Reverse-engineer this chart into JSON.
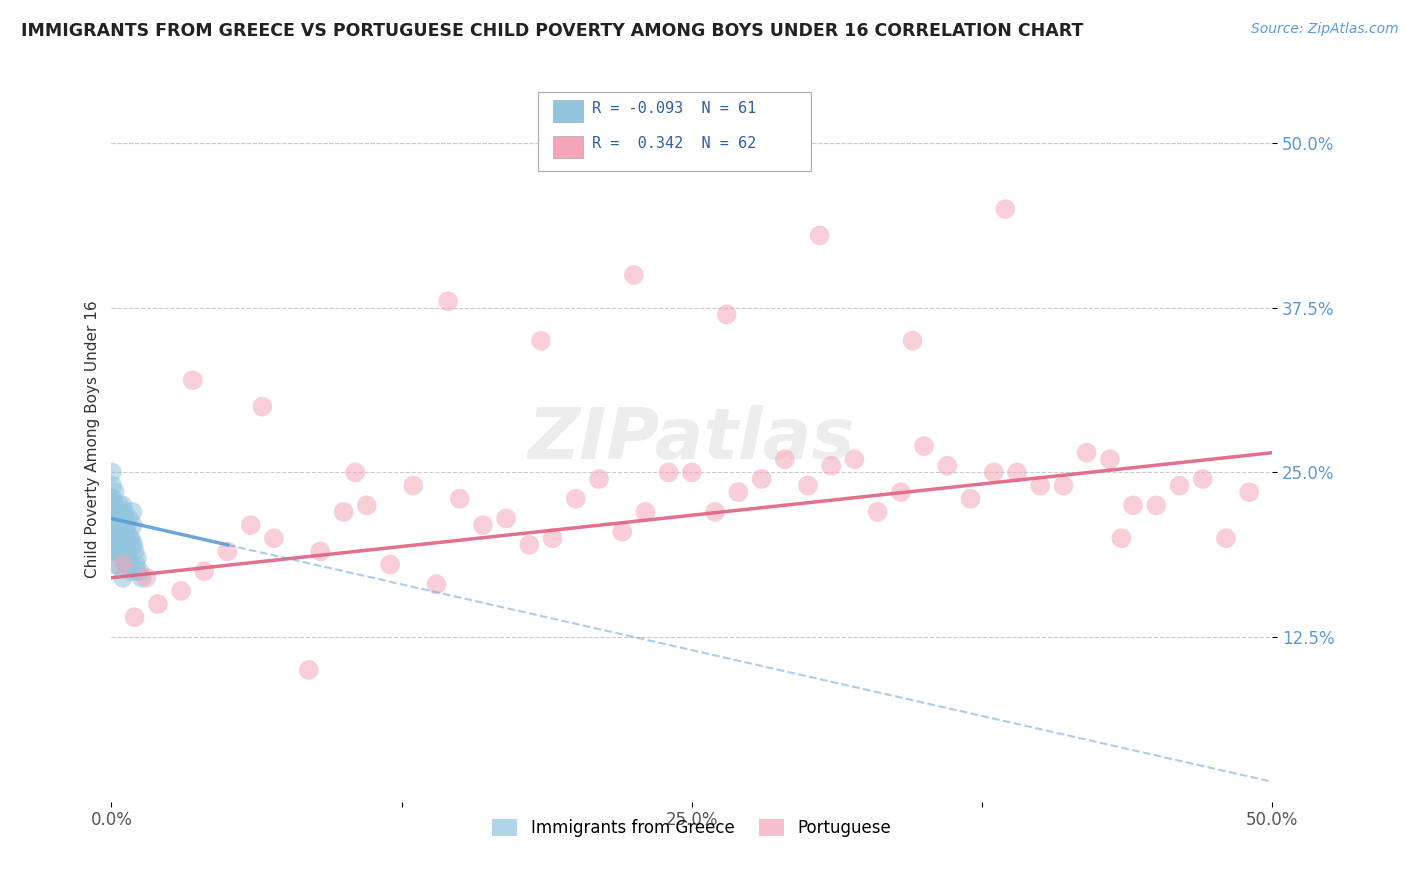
{
  "title": "IMMIGRANTS FROM GREECE VS PORTUGUESE CHILD POVERTY AMONG BOYS UNDER 16 CORRELATION CHART",
  "source": "Source: ZipAtlas.com",
  "ylabel": "Child Poverty Among Boys Under 16",
  "xlim": [
    0.0,
    50.0
  ],
  "ylim": [
    0.0,
    55.0
  ],
  "xticks": [
    0.0,
    12.5,
    25.0,
    37.5,
    50.0
  ],
  "yticks": [
    12.5,
    25.0,
    37.5,
    50.0
  ],
  "xtick_labels": [
    "0.0%",
    "",
    "25.0%",
    "",
    "50.0%"
  ],
  "ytick_labels": [
    "12.5%",
    "25.0%",
    "37.5%",
    "50.0%"
  ],
  "series1_label": "Immigrants from Greece",
  "series2_label": "Portuguese",
  "R1": "-0.093",
  "N1": "61",
  "R2": "0.342",
  "N2": "62",
  "color1": "#92c5de",
  "color2": "#f4a6b8",
  "trend1_color": "#5b9bd5",
  "trend2_color": "#e06080",
  "background_color": "#ffffff",
  "watermark": "ZIPatlas",
  "greece_x": [
    0.05,
    0.08,
    0.12,
    0.15,
    0.18,
    0.22,
    0.28,
    0.35,
    0.42,
    0.5,
    0.6,
    0.7,
    0.8,
    0.9,
    1.0,
    0.03,
    0.06,
    0.1,
    0.14,
    0.2,
    0.25,
    0.32,
    0.38,
    0.45,
    0.55,
    0.65,
    0.75,
    0.85,
    0.95,
    1.1,
    0.04,
    0.07,
    0.11,
    0.16,
    0.21,
    0.27,
    0.33,
    0.4,
    0.48,
    0.58,
    0.68,
    0.78,
    0.88,
    1.05,
    1.2,
    0.02,
    0.05,
    0.09,
    0.13,
    0.19,
    0.24,
    0.31,
    0.37,
    0.44,
    0.52,
    0.62,
    0.72,
    0.82,
    0.92,
    1.08,
    1.3
  ],
  "greece_y": [
    22.0,
    20.5,
    19.0,
    23.5,
    18.0,
    21.0,
    20.0,
    22.5,
    19.5,
    17.0,
    21.5,
    18.5,
    17.5,
    22.0,
    19.0,
    24.0,
    21.0,
    20.0,
    22.5,
    19.5,
    18.0,
    21.0,
    20.5,
    19.0,
    22.0,
    18.0,
    21.5,
    20.0,
    19.5,
    18.5,
    23.0,
    21.5,
    20.0,
    22.0,
    19.5,
    21.0,
    20.5,
    19.0,
    22.5,
    18.5,
    21.0,
    20.0,
    19.5,
    18.0,
    17.5,
    25.0,
    23.0,
    21.0,
    20.5,
    19.0,
    22.0,
    20.0,
    19.5,
    21.5,
    18.5,
    20.5,
    19.0,
    18.0,
    21.0,
    17.5,
    17.0
  ],
  "portuguese_x": [
    0.5,
    1.5,
    3.0,
    5.0,
    7.0,
    8.5,
    10.0,
    12.0,
    14.0,
    16.0,
    18.0,
    20.0,
    22.0,
    24.0,
    26.0,
    28.0,
    30.0,
    32.0,
    34.0,
    36.0,
    38.0,
    40.0,
    42.0,
    44.0,
    46.0,
    48.0,
    2.0,
    4.0,
    6.0,
    9.0,
    11.0,
    13.0,
    15.0,
    17.0,
    19.0,
    21.0,
    23.0,
    25.0,
    27.0,
    29.0,
    31.0,
    33.0,
    35.0,
    37.0,
    39.0,
    41.0,
    43.0,
    45.0,
    47.0,
    49.0,
    1.0,
    3.5,
    6.5,
    10.5,
    14.5,
    18.5,
    22.5,
    26.5,
    30.5,
    34.5,
    38.5,
    43.5
  ],
  "portuguese_y": [
    18.0,
    17.0,
    16.0,
    19.0,
    20.0,
    10.0,
    22.0,
    18.0,
    16.5,
    21.0,
    19.5,
    23.0,
    20.5,
    25.0,
    22.0,
    24.5,
    24.0,
    26.0,
    23.5,
    25.5,
    25.0,
    24.0,
    26.5,
    22.5,
    24.0,
    20.0,
    15.0,
    17.5,
    21.0,
    19.0,
    22.5,
    24.0,
    23.0,
    21.5,
    20.0,
    24.5,
    22.0,
    25.0,
    23.5,
    26.0,
    25.5,
    22.0,
    27.0,
    23.0,
    25.0,
    24.0,
    26.0,
    22.5,
    24.5,
    23.5,
    14.0,
    32.0,
    30.0,
    25.0,
    38.0,
    35.0,
    40.0,
    37.0,
    43.0,
    35.0,
    45.0,
    20.0
  ]
}
